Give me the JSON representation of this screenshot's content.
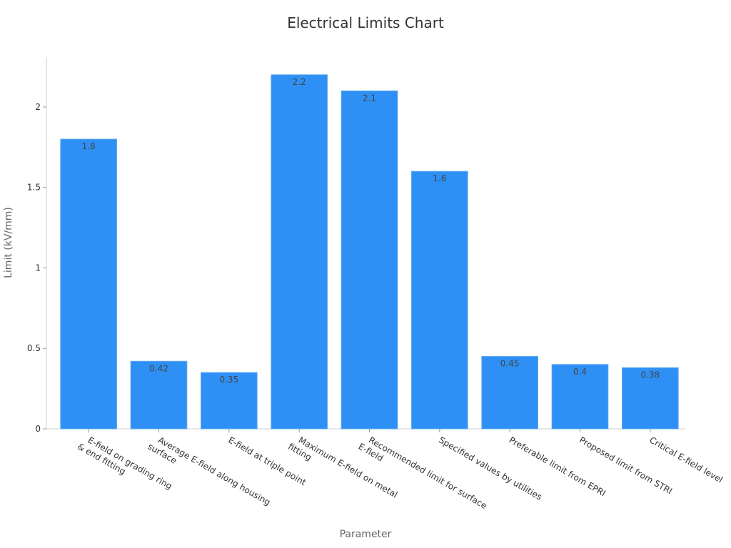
{
  "chart_data": {
    "type": "bar",
    "title": "Electrical Limits Chart",
    "xlabel": "Parameter",
    "ylabel": "Limit (kV/mm)",
    "categories": [
      [
        "E-field on grading ring",
        "& end fitting"
      ],
      [
        "Average E-field along housing",
        "surface"
      ],
      [
        "E-field at triple point"
      ],
      [
        "Maximum E-field on metal",
        "fitting"
      ],
      [
        "Recommended limit for surface",
        "E-field"
      ],
      [
        "Specified values by utilities"
      ],
      [
        "Preferable limit from EPRI"
      ],
      [
        "Proposed limit from STRI"
      ],
      [
        "Critical E-field level"
      ]
    ],
    "values": [
      1.8,
      0.42,
      0.35,
      2.2,
      2.1,
      1.6,
      0.45,
      0.4,
      0.38
    ],
    "value_labels": [
      "1.8",
      "0.42",
      "0.35",
      "2.2",
      "2.1",
      "1.6",
      "0.45",
      "0.4",
      "0.38"
    ],
    "y_ticks": [
      0,
      0.5,
      1,
      1.5,
      2
    ],
    "y_tick_labels": [
      "0",
      "0.5",
      "1",
      "1.5",
      "2"
    ],
    "ylim": [
      0,
      2.31
    ],
    "grid": false,
    "bar_color": "#2E90F5",
    "bar_edge_color": "#5FA8F2"
  }
}
